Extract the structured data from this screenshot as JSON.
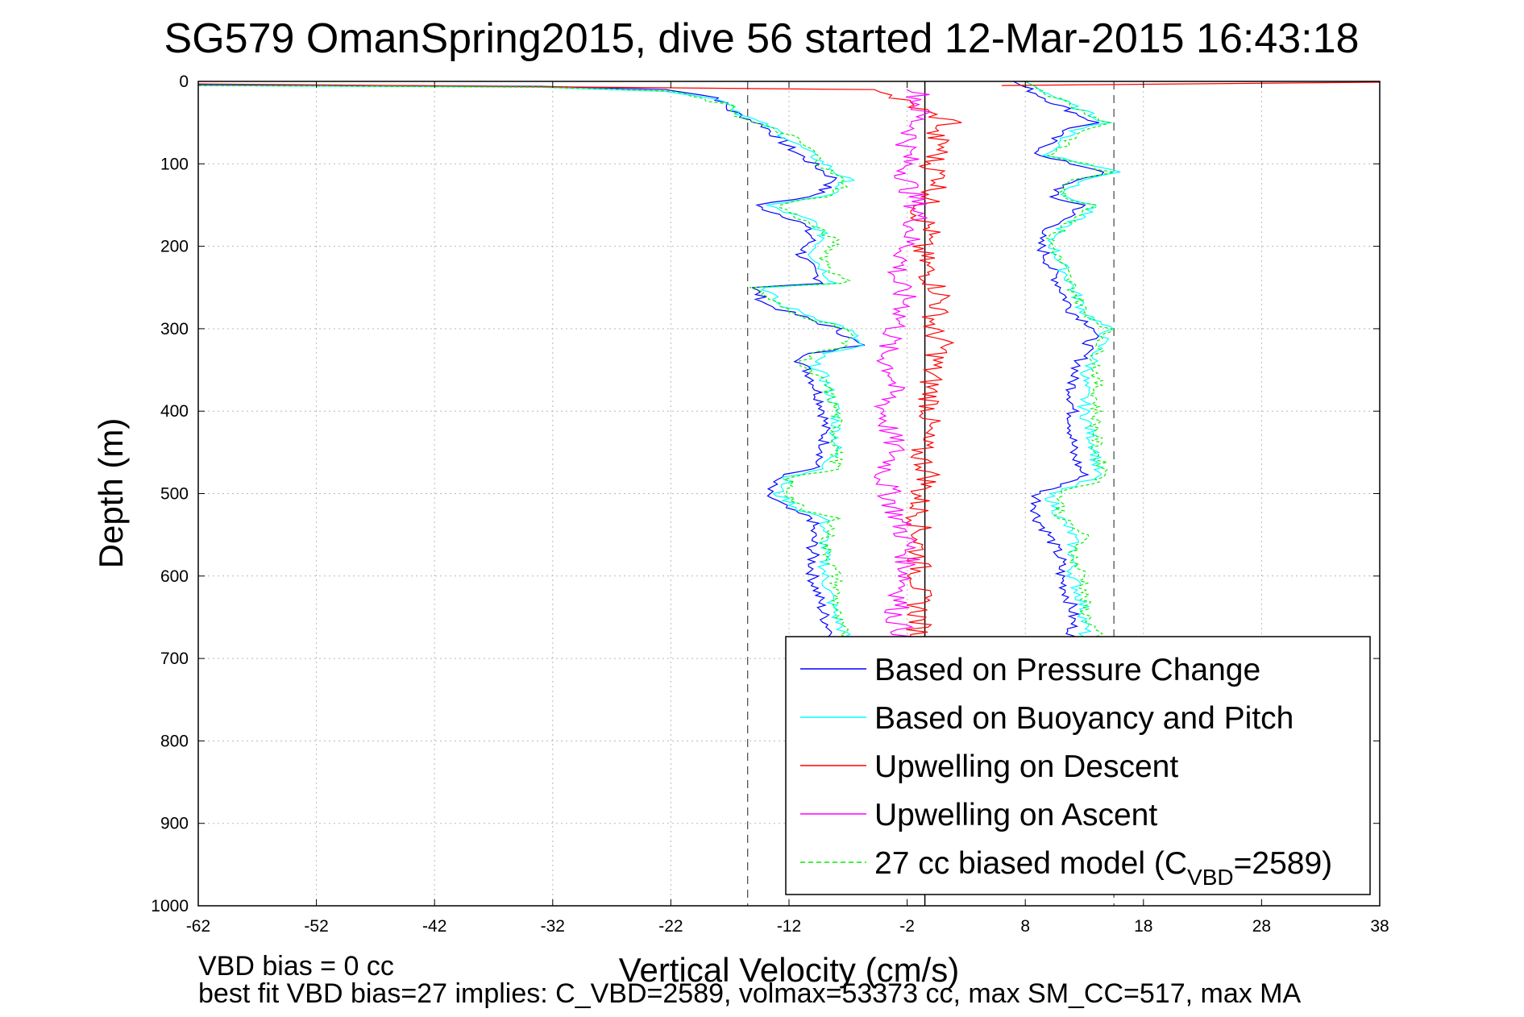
{
  "chart_data": {
    "type": "line",
    "title": "SG579 OmanSpring2015, dive 56 started 12-Mar-2015 16:43:18",
    "xlabel": "Vertical Velocity (cm/s)",
    "ylabel": "Depth (m)",
    "xlim": [
      -62,
      38
    ],
    "ylim": [
      0,
      1000
    ],
    "y_reversed": true,
    "grid": true,
    "x_ticks": [
      "-62",
      "-52",
      "-42",
      "-32",
      "-22",
      "-12",
      "-2",
      "8",
      "18",
      "28",
      "38"
    ],
    "y_ticks": [
      "0",
      "100",
      "200",
      "300",
      "400",
      "500",
      "600",
      "700",
      "800",
      "900",
      "1000"
    ],
    "reference_lines": {
      "zero_line": -0.5,
      "dashed_lines": [
        -15.5,
        15.5
      ]
    },
    "legend_position": "bottom-right",
    "series": [
      {
        "name": "Based on Pressure Change",
        "color": "#0000ff",
        "style": "solid",
        "descent": [
          [
            -62,
            4
          ],
          [
            -33,
            6
          ],
          [
            -22,
            10
          ],
          [
            -18,
            20
          ],
          [
            -17,
            35
          ],
          [
            -14,
            55
          ],
          [
            -12,
            80
          ],
          [
            -10,
            100
          ],
          [
            -8,
            120
          ],
          [
            -10,
            140
          ],
          [
            -15,
            150
          ],
          [
            -11,
            170
          ],
          [
            -10,
            190
          ],
          [
            -11,
            210
          ],
          [
            -10,
            230
          ],
          [
            -9,
            245
          ],
          [
            -15,
            250
          ],
          [
            -14,
            270
          ],
          [
            -12,
            280
          ],
          [
            -8,
            300
          ],
          [
            -6,
            320
          ],
          [
            -10,
            330
          ],
          [
            -11,
            340
          ],
          [
            -10,
            360
          ],
          [
            -9,
            400
          ],
          [
            -9,
            450
          ],
          [
            -10,
            470
          ],
          [
            -13,
            480
          ],
          [
            -14,
            500
          ],
          [
            -12,
            520
          ],
          [
            -10,
            530
          ],
          [
            -10,
            560
          ],
          [
            -10,
            600
          ],
          [
            -9,
            650
          ],
          [
            -8,
            680
          ]
        ],
        "ascent": [
          [
            7,
            0
          ],
          [
            9,
            15
          ],
          [
            11,
            30
          ],
          [
            14,
            50
          ],
          [
            11,
            60
          ],
          [
            9,
            90
          ],
          [
            12,
            100
          ],
          [
            15,
            110
          ],
          [
            12,
            120
          ],
          [
            10,
            140
          ],
          [
            13,
            150
          ],
          [
            11,
            170
          ],
          [
            9,
            190
          ],
          [
            10,
            220
          ],
          [
            11,
            250
          ],
          [
            12,
            280
          ],
          [
            14,
            300
          ],
          [
            13,
            330
          ],
          [
            12,
            360
          ],
          [
            12,
            400
          ],
          [
            12,
            450
          ],
          [
            13,
            480
          ],
          [
            9,
            500
          ],
          [
            9,
            530
          ],
          [
            10,
            550
          ],
          [
            11,
            580
          ],
          [
            11,
            600
          ],
          [
            12,
            640
          ],
          [
            12,
            670
          ],
          [
            11,
            690
          ]
        ]
      },
      {
        "name": "Based on Buoyancy and Pitch",
        "color": "#00ffff",
        "style": "solid",
        "descent": [
          [
            -62,
            5
          ],
          [
            -33,
            7
          ],
          [
            -22,
            12
          ],
          [
            -17,
            25
          ],
          [
            -16,
            40
          ],
          [
            -13,
            60
          ],
          [
            -11,
            80
          ],
          [
            -9,
            100
          ],
          [
            -7,
            120
          ],
          [
            -9,
            140
          ],
          [
            -14,
            150
          ],
          [
            -10,
            170
          ],
          [
            -9,
            190
          ],
          [
            -10,
            210
          ],
          [
            -9,
            230
          ],
          [
            -8,
            245
          ],
          [
            -14,
            250
          ],
          [
            -13,
            270
          ],
          [
            -11,
            280
          ],
          [
            -7,
            300
          ],
          [
            -6,
            320
          ],
          [
            -9,
            330
          ],
          [
            -10,
            340
          ],
          [
            -9,
            360
          ],
          [
            -8,
            400
          ],
          [
            -8,
            450
          ],
          [
            -9,
            470
          ],
          [
            -12,
            480
          ],
          [
            -13,
            500
          ],
          [
            -11,
            520
          ],
          [
            -9,
            530
          ],
          [
            -9,
            560
          ],
          [
            -9,
            600
          ],
          [
            -8,
            650
          ],
          [
            -7,
            680
          ]
        ],
        "ascent": [
          [
            8,
            0
          ],
          [
            10,
            15
          ],
          [
            12,
            30
          ],
          [
            15,
            50
          ],
          [
            12,
            60
          ],
          [
            10,
            90
          ],
          [
            13,
            100
          ],
          [
            16,
            110
          ],
          [
            13,
            120
          ],
          [
            11,
            140
          ],
          [
            14,
            150
          ],
          [
            12,
            170
          ],
          [
            10,
            190
          ],
          [
            11,
            220
          ],
          [
            12,
            250
          ],
          [
            13,
            280
          ],
          [
            15,
            300
          ],
          [
            14,
            330
          ],
          [
            13,
            360
          ],
          [
            13,
            400
          ],
          [
            14,
            450
          ],
          [
            14,
            480
          ],
          [
            10,
            500
          ],
          [
            11,
            530
          ],
          [
            12,
            550
          ],
          [
            12,
            580
          ],
          [
            12,
            600
          ],
          [
            13,
            640
          ],
          [
            13,
            670
          ],
          [
            12,
            690
          ]
        ]
      },
      {
        "name": "Upwelling on Descent",
        "color": "#ff0000",
        "style": "solid",
        "descent": [
          [
            -62,
            3
          ],
          [
            -4,
            10
          ],
          [
            -3,
            20
          ],
          [
            0,
            40
          ],
          [
            2,
            50
          ],
          [
            0,
            60
          ],
          [
            1,
            80
          ],
          [
            0,
            100
          ],
          [
            1,
            120
          ],
          [
            0,
            140
          ],
          [
            -1,
            160
          ],
          [
            0,
            180
          ],
          [
            -1,
            200
          ],
          [
            0,
            240
          ],
          [
            1,
            260
          ],
          [
            0,
            300
          ],
          [
            1,
            320
          ],
          [
            0,
            350
          ],
          [
            0,
            400
          ],
          [
            -1,
            450
          ],
          [
            0,
            480
          ],
          [
            -1,
            500
          ],
          [
            -1,
            550
          ],
          [
            -1,
            600
          ],
          [
            -1,
            650
          ],
          [
            -1,
            680
          ]
        ],
        "ascent": [
          [
            38,
            1
          ],
          [
            6,
            5
          ]
        ]
      },
      {
        "name": "Upwelling on Ascent",
        "color": "#ff00ff",
        "style": "solid",
        "descent": [],
        "ascent": [
          [
            -1,
            10
          ],
          [
            -1,
            40
          ],
          [
            -2,
            80
          ],
          [
            -2,
            120
          ],
          [
            -1,
            160
          ],
          [
            -2,
            200
          ],
          [
            -3,
            240
          ],
          [
            -2,
            270
          ],
          [
            -3,
            300
          ],
          [
            -4,
            330
          ],
          [
            -3,
            360
          ],
          [
            -4,
            400
          ],
          [
            -3,
            450
          ],
          [
            -4,
            480
          ],
          [
            -3,
            520
          ],
          [
            -2,
            560
          ],
          [
            -2,
            600
          ],
          [
            -3,
            650
          ],
          [
            -2,
            680
          ]
        ]
      },
      {
        "name": "27 cc biased model (C_VBD=2589)",
        "color": "#00ee00",
        "style": "dashed",
        "descent": [
          [
            -62,
            5
          ],
          [
            -33,
            7
          ],
          [
            -22,
            12
          ],
          [
            -17,
            30
          ],
          [
            -16,
            45
          ],
          [
            -12,
            65
          ],
          [
            -10,
            85
          ],
          [
            -9,
            105
          ],
          [
            -7,
            125
          ],
          [
            -9,
            140
          ],
          [
            -13,
            150
          ],
          [
            -10,
            175
          ],
          [
            -8,
            195
          ],
          [
            -9,
            215
          ],
          [
            -8,
            235
          ],
          [
            -7,
            245
          ],
          [
            -15,
            250
          ],
          [
            -13,
            270
          ],
          [
            -12,
            280
          ],
          [
            -7,
            300
          ],
          [
            -7,
            320
          ],
          [
            -10,
            330
          ],
          [
            -11,
            345
          ],
          [
            -9,
            365
          ],
          [
            -8,
            400
          ],
          [
            -8,
            450
          ],
          [
            -8,
            470
          ],
          [
            -12,
            480
          ],
          [
            -12,
            500
          ],
          [
            -11,
            520
          ],
          [
            -8,
            530
          ],
          [
            -9,
            560
          ],
          [
            -8,
            600
          ],
          [
            -8,
            650
          ],
          [
            -7,
            680
          ]
        ],
        "ascent": [
          [
            8,
            0
          ],
          [
            10,
            15
          ],
          [
            12,
            30
          ],
          [
            15,
            50
          ],
          [
            13,
            60
          ],
          [
            10,
            90
          ],
          [
            13,
            100
          ],
          [
            15,
            110
          ],
          [
            12,
            120
          ],
          [
            11,
            140
          ],
          [
            14,
            150
          ],
          [
            12,
            170
          ],
          [
            10,
            190
          ],
          [
            11,
            220
          ],
          [
            12,
            250
          ],
          [
            13,
            280
          ],
          [
            15,
            300
          ],
          [
            14,
            330
          ],
          [
            14,
            360
          ],
          [
            14,
            400
          ],
          [
            14,
            450
          ],
          [
            15,
            480
          ],
          [
            11,
            500
          ],
          [
            11,
            530
          ],
          [
            13,
            550
          ],
          [
            12,
            580
          ],
          [
            13,
            600
          ],
          [
            13,
            640
          ],
          [
            14,
            670
          ],
          [
            12,
            690
          ]
        ]
      }
    ],
    "legend": [
      {
        "label": "Based on Pressure Change",
        "color": "#0000ff",
        "style": "solid"
      },
      {
        "label": "Based on Buoyancy and Pitch",
        "color": "#00ffff",
        "style": "solid"
      },
      {
        "label": "Upwelling on Descent",
        "color": "#ff0000",
        "style": "solid"
      },
      {
        "label": "Upwelling on Ascent",
        "color": "#ff00ff",
        "style": "solid"
      },
      {
        "label": "27 cc biased model (C",
        "subscript": "VBD",
        "suffix": "=2589)",
        "color": "#00ee00",
        "style": "dashed"
      }
    ],
    "annotations": {
      "bias_line": "VBD bias = 0 cc",
      "fit_line": "best fit VBD bias=27 implies: C_VBD=2589, volmax=53373 cc, max SM_CC=517, max MA"
    }
  }
}
